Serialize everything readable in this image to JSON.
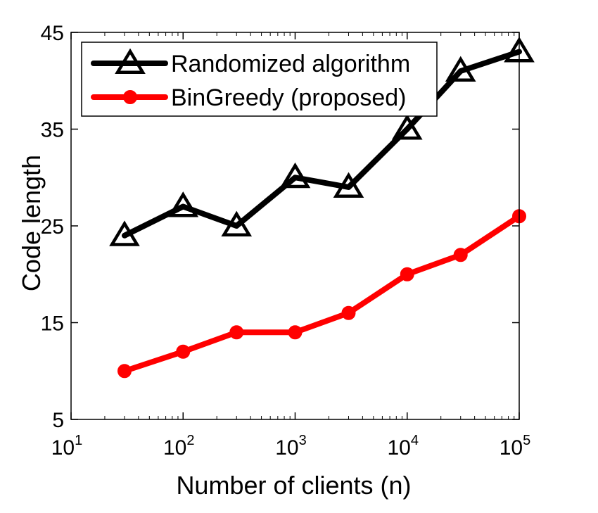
{
  "chart_data": {
    "type": "line",
    "xlabel": "Number of clients (n)",
    "ylabel": "Code length",
    "xscale": "log",
    "xlim": [
      10,
      100000
    ],
    "ylim": [
      5,
      45
    ],
    "xticks": [
      {
        "base": "10",
        "exp": "1",
        "value": 10
      },
      {
        "base": "10",
        "exp": "2",
        "value": 100
      },
      {
        "base": "10",
        "exp": "3",
        "value": 1000
      },
      {
        "base": "10",
        "exp": "4",
        "value": 10000
      },
      {
        "base": "10",
        "exp": "5",
        "value": 100000
      }
    ],
    "yticks": [
      5,
      15,
      25,
      35,
      45
    ],
    "x": [
      30,
      100,
      300,
      1000,
      3000,
      10000,
      30000,
      100000
    ],
    "series": [
      {
        "name": "Randomized algorithm",
        "color": "#000000",
        "marker": "triangle",
        "values": [
          24,
          27,
          25,
          30,
          29,
          35,
          41,
          43
        ]
      },
      {
        "name": "BinGreedy (proposed)",
        "color": "#ff0000",
        "marker": "circle",
        "values": [
          10,
          12,
          14,
          14,
          16,
          20,
          22,
          26
        ]
      }
    ],
    "grid": false,
    "legend_position": "top-left"
  }
}
